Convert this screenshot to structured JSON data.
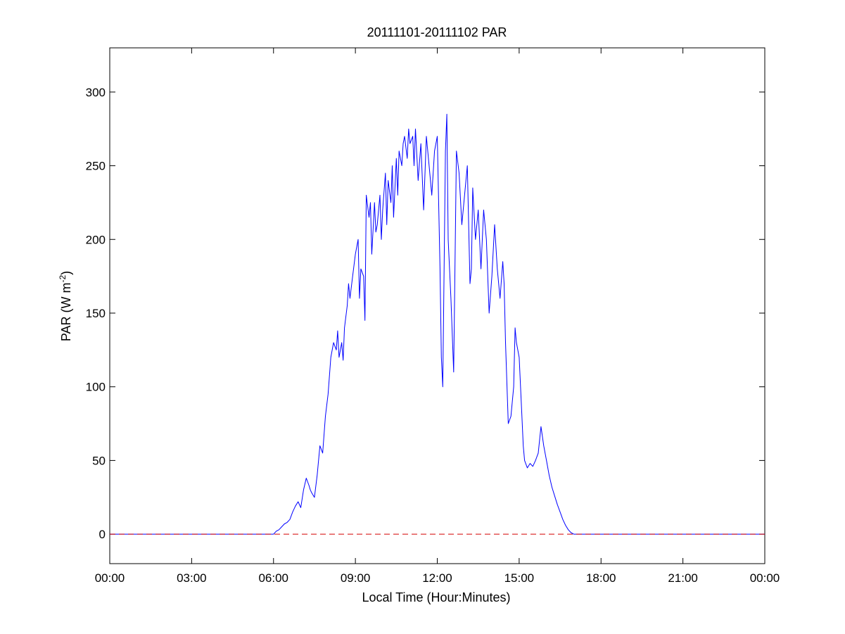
{
  "chart_data": {
    "type": "line",
    "title": "20111101-20111102 PAR",
    "xlabel": "Local Time (Hour:Minutes)",
    "ylabel_main": "PAR (W m",
    "ylabel_sup": "-2",
    "ylabel_close": ")",
    "xlim": [
      0,
      24
    ],
    "ylim": [
      -20,
      330
    ],
    "x_tick_values": [
      0,
      3,
      6,
      9,
      12,
      15,
      18,
      21,
      24
    ],
    "x_tick_labels": [
      "00:00",
      "03:00",
      "06:00",
      "09:00",
      "12:00",
      "15:00",
      "18:00",
      "21:00",
      "00:00"
    ],
    "y_tick_values": [
      0,
      50,
      100,
      150,
      200,
      250,
      300
    ],
    "y_tick_labels": [
      "0",
      "50",
      "100",
      "150",
      "200",
      "250",
      "300"
    ],
    "grid": false,
    "legend": "none",
    "colors": {
      "series": "#0000ff",
      "reference": "#d40000",
      "axes": "#000000"
    },
    "reference_line": {
      "y": 0,
      "style": "dashed"
    },
    "series": [
      {
        "x": [
          0,
          6.0,
          6.1,
          6.2,
          6.3,
          6.4,
          6.5,
          6.6,
          6.7,
          6.8,
          6.9,
          7.0,
          7.1,
          7.2,
          7.3,
          7.35,
          7.4,
          7.5,
          7.6,
          7.7,
          7.8,
          7.9,
          8.0,
          8.1,
          8.2,
          8.3,
          8.35,
          8.4,
          8.5,
          8.55,
          8.6,
          8.7,
          8.75,
          8.8,
          8.9,
          9.0,
          9.1,
          9.15,
          9.2,
          9.3,
          9.35,
          9.4,
          9.5,
          9.55,
          9.6,
          9.7,
          9.75,
          9.8,
          9.9,
          9.95,
          10.0,
          10.1,
          10.15,
          10.2,
          10.3,
          10.35,
          10.4,
          10.5,
          10.55,
          10.6,
          10.7,
          10.75,
          10.8,
          10.9,
          10.95,
          11.0,
          11.1,
          11.15,
          11.2,
          11.3,
          11.4,
          11.5,
          11.6,
          11.7,
          11.8,
          11.9,
          12.0,
          12.1,
          12.15,
          12.2,
          12.3,
          12.35,
          12.4,
          12.5,
          12.6,
          12.7,
          12.8,
          12.9,
          13.0,
          13.1,
          13.2,
          13.25,
          13.3,
          13.4,
          13.5,
          13.6,
          13.7,
          13.8,
          13.9,
          14.0,
          14.1,
          14.2,
          14.3,
          14.4,
          14.45,
          14.5,
          14.6,
          14.7,
          14.8,
          14.85,
          14.9,
          15.0,
          15.1,
          15.15,
          15.2,
          15.3,
          15.4,
          15.5,
          15.6,
          15.7,
          15.8,
          15.9,
          16.0,
          16.1,
          16.2,
          16.3,
          16.4,
          16.5,
          16.6,
          16.7,
          16.8,
          16.9,
          17.0,
          17.1,
          17.2,
          17.3,
          24
        ],
        "y": [
          0,
          0,
          2,
          3,
          5,
          7,
          8,
          10,
          15,
          19,
          22,
          18,
          30,
          38,
          33,
          30,
          28,
          25,
          40,
          60,
          55,
          80,
          95,
          120,
          130,
          125,
          138,
          120,
          130,
          118,
          140,
          155,
          170,
          160,
          175,
          190,
          200,
          160,
          180,
          175,
          145,
          230,
          215,
          225,
          190,
          225,
          205,
          210,
          230,
          200,
          220,
          245,
          210,
          240,
          225,
          250,
          215,
          255,
          230,
          260,
          250,
          265,
          270,
          255,
          275,
          265,
          270,
          250,
          275,
          240,
          265,
          220,
          270,
          250,
          230,
          260,
          270,
          180,
          120,
          100,
          260,
          285,
          200,
          160,
          110,
          260,
          245,
          210,
          230,
          250,
          170,
          180,
          235,
          200,
          220,
          180,
          220,
          200,
          150,
          175,
          210,
          180,
          160,
          185,
          170,
          130,
          75,
          80,
          100,
          140,
          130,
          120,
          80,
          60,
          50,
          45,
          48,
          46,
          50,
          55,
          73,
          60,
          50,
          40,
          32,
          26,
          20,
          15,
          10,
          6,
          3,
          1,
          0,
          0,
          0,
          0,
          0
        ]
      }
    ]
  }
}
